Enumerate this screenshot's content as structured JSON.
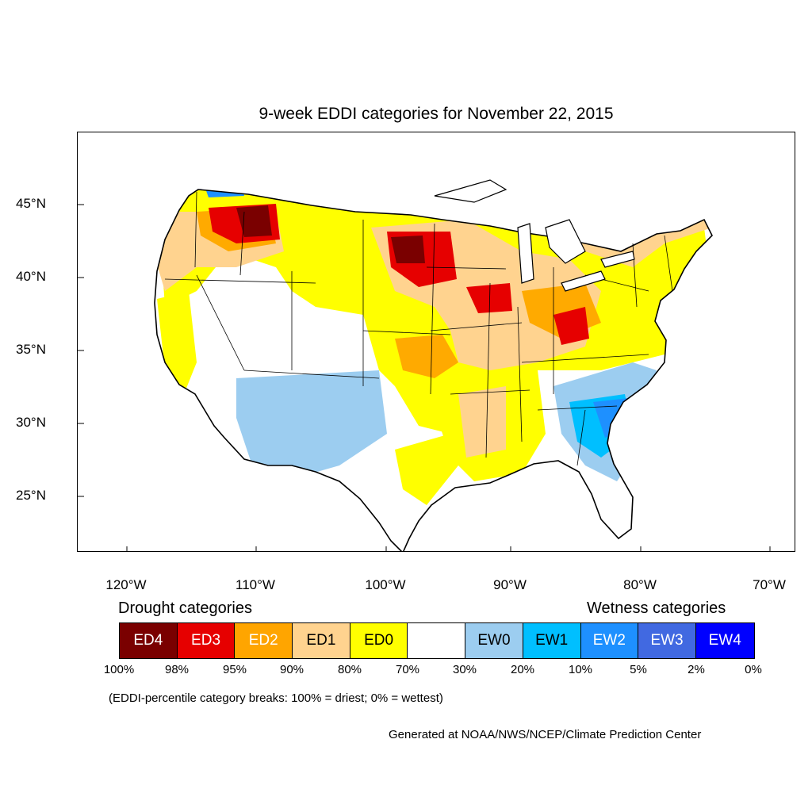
{
  "title": "9-week EDDI categories for November 22, 2015",
  "map": {
    "latitude_labels": [
      "45°N",
      "40°N",
      "35°N",
      "30°N",
      "25°N"
    ],
    "longitude_labels": [
      "120°W",
      "110°W",
      "100°W",
      "90°W",
      "80°W",
      "70°W"
    ],
    "region": "Contiguous United States",
    "colors": {
      "ED4": "#7a0000",
      "ED3": "#e60000",
      "ED2": "#ffaa00",
      "ED1": "#ffd38f",
      "ED0": "#ffff00",
      "neutral": "#ffffff",
      "EW0": "#9ccdf0",
      "EW1": "#00bfff",
      "EW2": "#1e90ff",
      "EW3": "#4169e1",
      "EW4": "#0000ff"
    }
  },
  "legend": {
    "drought_heading": "Drought categories",
    "wetness_heading": "Wetness categories",
    "categories": [
      {
        "label": "ED4",
        "color": "#7a0000",
        "text_color": "#ffffff"
      },
      {
        "label": "ED3",
        "color": "#e60000",
        "text_color": "#ffffff"
      },
      {
        "label": "ED2",
        "color": "#ffa500",
        "text_color": "#ffffff"
      },
      {
        "label": "ED1",
        "color": "#ffd38f",
        "text_color": "#000000"
      },
      {
        "label": "ED0",
        "color": "#ffff00",
        "text_color": "#000000"
      },
      {
        "label": "",
        "color": "#ffffff",
        "text_color": "#000000"
      },
      {
        "label": "EW0",
        "color": "#9ccdf0",
        "text_color": "#000000"
      },
      {
        "label": "EW1",
        "color": "#00bfff",
        "text_color": "#000000"
      },
      {
        "label": "EW2",
        "color": "#1e90ff",
        "text_color": "#ffffff"
      },
      {
        "label": "EW3",
        "color": "#4169e1",
        "text_color": "#ffffff"
      },
      {
        "label": "EW4",
        "color": "#0000ff",
        "text_color": "#ffffff"
      }
    ],
    "breaks": [
      "100%",
      "98%",
      "95%",
      "90%",
      "80%",
      "70%",
      "30%",
      "20%",
      "10%",
      "5%",
      "2%",
      "0%"
    ]
  },
  "note": "(EDDI-percentile category breaks: 100% = driest; 0% = wettest)",
  "credit": "Generated at NOAA/NWS/NCEP/Climate Prediction Center"
}
